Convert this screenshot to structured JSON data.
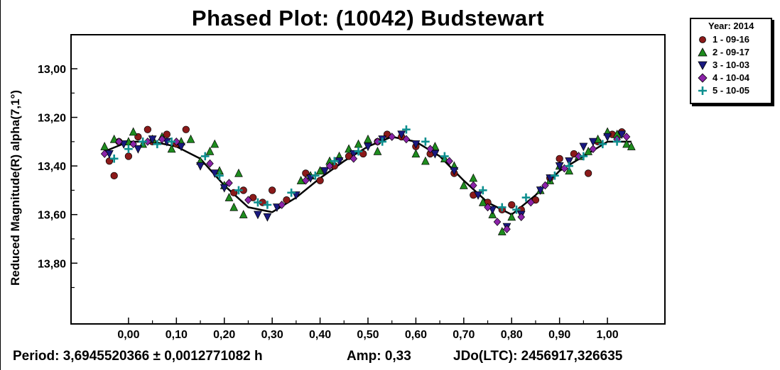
{
  "chart_data": {
    "type": "scatter",
    "title": "Phased Plot: (10042) Budstewart",
    "ylabel": "Reduced Magnitude(R) alpha(7,1°)",
    "xlabel": "",
    "xlim": [
      -0.12,
      1.12
    ],
    "ylim": [
      14.05,
      12.86
    ],
    "y_inverted": true,
    "grid": false,
    "legend_position": "top-right outside plot",
    "x_ticks": [
      "0,00",
      "0,10",
      "0,20",
      "0,30",
      "0,40",
      "0,50",
      "0,60",
      "0,70",
      "0,80",
      "0,90",
      "1,00"
    ],
    "y_ticks": [
      "13,00",
      "13,20",
      "13,40",
      "13,60",
      "13,80"
    ],
    "legend": {
      "title": "Year: 2014",
      "entries": [
        {
          "label": "1 - 09-16",
          "marker": "circle",
          "color": "#8b1a1a"
        },
        {
          "label": "2 - 09-17",
          "marker": "triangle-up",
          "color": "#1e8c1e"
        },
        {
          "label": "3 - 10-03",
          "marker": "triangle-down",
          "color": "#191980"
        },
        {
          "label": "4 - 10-04",
          "marker": "diamond",
          "color": "#8b22a8"
        },
        {
          "label": "5 - 10-05",
          "marker": "plus",
          "color": "#0e8f8f"
        }
      ]
    },
    "fit_curve": {
      "x": [
        -0.05,
        0.0,
        0.05,
        0.1,
        0.15,
        0.2,
        0.25,
        0.3,
        0.35,
        0.4,
        0.45,
        0.5,
        0.55,
        0.6,
        0.65,
        0.7,
        0.75,
        0.8,
        0.85,
        0.9,
        0.95,
        1.0,
        1.05
      ],
      "y": [
        13.34,
        13.3,
        13.3,
        13.32,
        13.37,
        13.48,
        13.57,
        13.59,
        13.53,
        13.45,
        13.38,
        13.32,
        13.28,
        13.3,
        13.36,
        13.46,
        13.55,
        13.6,
        13.52,
        13.42,
        13.36,
        13.3,
        13.3
      ]
    },
    "series": [
      {
        "name": "1 - 09-16",
        "x": [
          -0.04,
          -0.03,
          -0.02,
          0.0,
          0.02,
          0.04,
          0.05,
          0.08,
          0.1,
          0.12,
          0.22,
          0.24,
          0.26,
          0.28,
          0.3,
          0.33,
          0.37,
          0.4,
          0.43,
          0.46,
          0.49,
          0.52,
          0.54,
          0.57,
          0.6,
          0.63,
          0.68,
          0.72,
          0.75,
          0.78,
          0.8,
          0.82,
          0.85,
          0.88,
          0.9,
          0.93,
          0.96,
          0.98,
          1.01,
          1.03
        ],
        "y": [
          13.38,
          13.44,
          13.3,
          13.36,
          13.28,
          13.25,
          13.3,
          13.27,
          13.31,
          13.25,
          13.51,
          13.5,
          13.53,
          13.55,
          13.5,
          13.54,
          13.43,
          13.46,
          13.4,
          13.36,
          13.35,
          13.3,
          13.27,
          13.28,
          13.32,
          13.35,
          13.43,
          13.52,
          13.55,
          13.58,
          13.56,
          13.58,
          13.54,
          13.45,
          13.37,
          13.35,
          13.43,
          13.3,
          13.27,
          13.26
        ]
      },
      {
        "name": "2 - 09-17",
        "x": [
          -0.05,
          -0.03,
          0.0,
          0.01,
          0.03,
          0.05,
          0.07,
          0.09,
          0.11,
          0.13,
          0.15,
          0.17,
          0.18,
          0.19,
          0.2,
          0.21,
          0.22,
          0.23,
          0.24,
          0.36,
          0.38,
          0.4,
          0.42,
          0.44,
          0.46,
          0.48,
          0.5,
          0.52,
          0.6,
          0.62,
          0.64,
          0.66,
          0.68,
          0.7,
          0.72,
          0.74,
          0.76,
          0.78,
          0.8,
          0.86,
          0.88,
          0.9,
          0.92,
          0.94,
          0.96,
          0.98,
          1.0,
          1.02,
          1.04,
          1.05
        ],
        "y": [
          13.32,
          13.29,
          13.3,
          13.26,
          13.31,
          13.29,
          13.28,
          13.33,
          13.3,
          13.29,
          13.38,
          13.34,
          13.31,
          13.42,
          13.48,
          13.53,
          13.57,
          13.43,
          13.6,
          13.46,
          13.44,
          13.42,
          13.38,
          13.36,
          13.33,
          13.31,
          13.29,
          13.34,
          13.35,
          13.38,
          13.32,
          13.37,
          13.4,
          13.48,
          13.45,
          13.55,
          13.6,
          13.67,
          13.61,
          13.5,
          13.46,
          13.4,
          13.42,
          13.36,
          13.34,
          13.29,
          13.26,
          13.27,
          13.31,
          13.32
        ]
      },
      {
        "name": "3 - 10-03",
        "x": [
          -0.04,
          -0.01,
          0.02,
          0.05,
          0.08,
          0.11,
          0.15,
          0.18,
          0.2,
          0.27,
          0.29,
          0.31,
          0.35,
          0.38,
          0.41,
          0.44,
          0.47,
          0.5,
          0.53,
          0.57,
          0.6,
          0.64,
          0.68,
          0.73,
          0.76,
          0.79,
          0.82,
          0.86,
          0.88,
          0.9,
          0.92,
          0.95,
          0.97,
          1.0,
          1.03
        ],
        "y": [
          13.35,
          13.31,
          13.33,
          13.29,
          13.3,
          13.32,
          13.4,
          13.43,
          13.49,
          13.6,
          13.61,
          13.57,
          13.52,
          13.45,
          13.42,
          13.38,
          13.35,
          13.32,
          13.29,
          13.27,
          13.31,
          13.35,
          13.42,
          13.52,
          13.58,
          13.65,
          13.6,
          13.5,
          13.45,
          13.4,
          13.38,
          13.32,
          13.3,
          13.28,
          13.27
        ]
      },
      {
        "name": "4 - 10-04",
        "x": [
          -0.05,
          -0.02,
          0.01,
          0.04,
          0.07,
          0.1,
          0.17,
          0.21,
          0.25,
          0.32,
          0.37,
          0.42,
          0.47,
          0.52,
          0.55,
          0.58,
          0.63,
          0.67,
          0.72,
          0.75,
          0.77,
          0.79,
          0.82,
          0.84,
          0.87,
          0.91,
          0.94,
          0.97,
          1.02,
          1.04
        ],
        "y": [
          13.35,
          13.3,
          13.31,
          13.3,
          13.29,
          13.3,
          13.39,
          13.47,
          13.54,
          13.56,
          13.46,
          13.4,
          13.37,
          13.3,
          13.28,
          13.29,
          13.33,
          13.38,
          13.48,
          13.57,
          13.63,
          13.66,
          13.61,
          13.55,
          13.48,
          13.41,
          13.36,
          13.33,
          13.29,
          13.28
        ]
      },
      {
        "name": "5 - 10-05",
        "x": [
          -0.03,
          0.0,
          0.03,
          0.06,
          0.09,
          0.16,
          0.19,
          0.23,
          0.27,
          0.29,
          0.34,
          0.39,
          0.43,
          0.48,
          0.53,
          0.58,
          0.62,
          0.66,
          0.74,
          0.78,
          0.81,
          0.83,
          0.89,
          0.92,
          0.95,
          0.99,
          1.02
        ],
        "y": [
          13.37,
          13.33,
          13.3,
          13.31,
          13.3,
          13.36,
          13.44,
          13.5,
          13.55,
          13.56,
          13.51,
          13.44,
          13.38,
          13.34,
          13.3,
          13.25,
          13.3,
          13.36,
          13.5,
          13.57,
          13.58,
          13.53,
          13.44,
          13.4,
          13.36,
          13.31,
          13.3
        ]
      }
    ]
  },
  "footer": {
    "period": "Period: 3,6945520366 ± 0,0012771082 h",
    "amp": "Amp: 0,33",
    "jdo": "JDo(LTC): 2456917,326635"
  }
}
